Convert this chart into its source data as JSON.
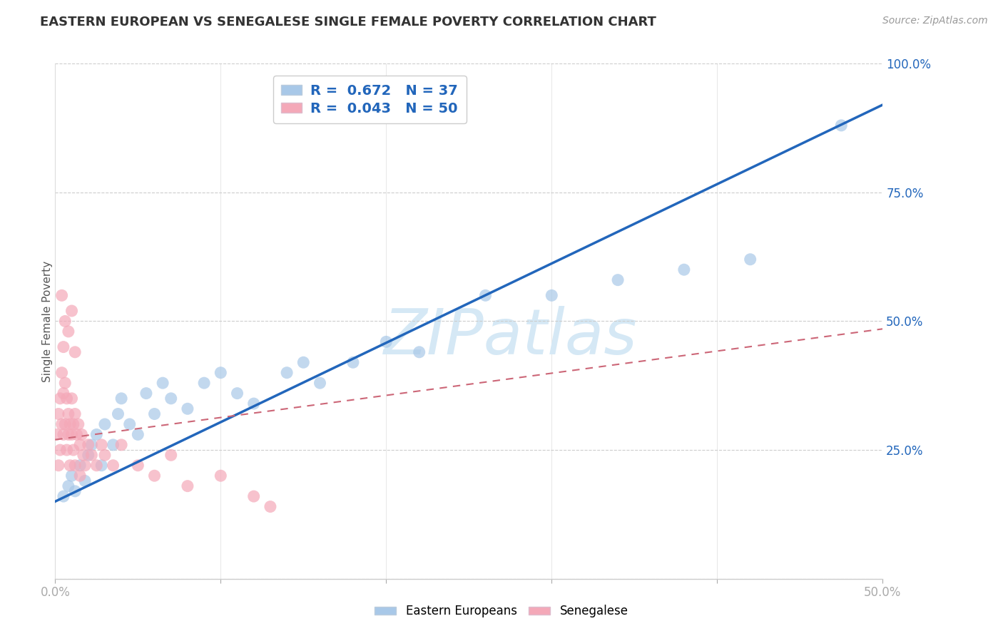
{
  "title": "EASTERN EUROPEAN VS SENEGALESE SINGLE FEMALE POVERTY CORRELATION CHART",
  "source": "Source: ZipAtlas.com",
  "ylabel": "Single Female Poverty",
  "legend_label1": "Eastern Europeans",
  "legend_label2": "Senegalese",
  "r1": 0.672,
  "n1": 37,
  "r2": 0.043,
  "n2": 50,
  "xlim": [
    0.0,
    0.5
  ],
  "ylim": [
    0.0,
    1.0
  ],
  "background_color": "#ffffff",
  "blue_dot_color": "#a8c8e8",
  "pink_dot_color": "#f4a8b8",
  "blue_line_color": "#2266bb",
  "pink_line_color": "#cc6677",
  "watermark": "ZIPatlas",
  "watermark_color": "#d5e8f5",
  "blue_scatter_x": [
    0.005,
    0.008,
    0.01,
    0.012,
    0.015,
    0.018,
    0.02,
    0.022,
    0.025,
    0.028,
    0.03,
    0.035,
    0.038,
    0.04,
    0.045,
    0.05,
    0.055,
    0.06,
    0.065,
    0.07,
    0.08,
    0.09,
    0.1,
    0.11,
    0.12,
    0.14,
    0.15,
    0.16,
    0.18,
    0.2,
    0.22,
    0.26,
    0.3,
    0.34,
    0.38,
    0.42,
    0.475
  ],
  "blue_scatter_y": [
    0.16,
    0.18,
    0.2,
    0.17,
    0.22,
    0.19,
    0.24,
    0.26,
    0.28,
    0.22,
    0.3,
    0.26,
    0.32,
    0.35,
    0.3,
    0.28,
    0.36,
    0.32,
    0.38,
    0.35,
    0.33,
    0.38,
    0.4,
    0.36,
    0.34,
    0.4,
    0.42,
    0.38,
    0.42,
    0.46,
    0.44,
    0.55,
    0.55,
    0.58,
    0.6,
    0.62,
    0.88
  ],
  "pink_scatter_x": [
    0.001,
    0.002,
    0.002,
    0.003,
    0.003,
    0.004,
    0.004,
    0.005,
    0.005,
    0.005,
    0.006,
    0.006,
    0.007,
    0.007,
    0.008,
    0.008,
    0.009,
    0.009,
    0.01,
    0.01,
    0.011,
    0.011,
    0.012,
    0.012,
    0.013,
    0.014,
    0.015,
    0.015,
    0.016,
    0.017,
    0.018,
    0.02,
    0.022,
    0.025,
    0.028,
    0.03,
    0.035,
    0.04,
    0.05,
    0.06,
    0.07,
    0.08,
    0.1,
    0.12,
    0.13,
    0.004,
    0.006,
    0.008,
    0.01,
    0.012
  ],
  "pink_scatter_y": [
    0.28,
    0.32,
    0.22,
    0.35,
    0.25,
    0.4,
    0.3,
    0.45,
    0.36,
    0.28,
    0.38,
    0.3,
    0.35,
    0.25,
    0.32,
    0.28,
    0.3,
    0.22,
    0.35,
    0.28,
    0.3,
    0.25,
    0.32,
    0.22,
    0.28,
    0.3,
    0.26,
    0.2,
    0.28,
    0.24,
    0.22,
    0.26,
    0.24,
    0.22,
    0.26,
    0.24,
    0.22,
    0.26,
    0.22,
    0.2,
    0.24,
    0.18,
    0.2,
    0.16,
    0.14,
    0.55,
    0.5,
    0.48,
    0.52,
    0.44
  ],
  "blue_line_x0": 0.0,
  "blue_line_y0": 0.15,
  "blue_line_x1": 0.5,
  "blue_line_y1": 0.92,
  "pink_line_x0": 0.0,
  "pink_line_y0": 0.27,
  "pink_line_x1": 0.5,
  "pink_line_y1": 0.485
}
